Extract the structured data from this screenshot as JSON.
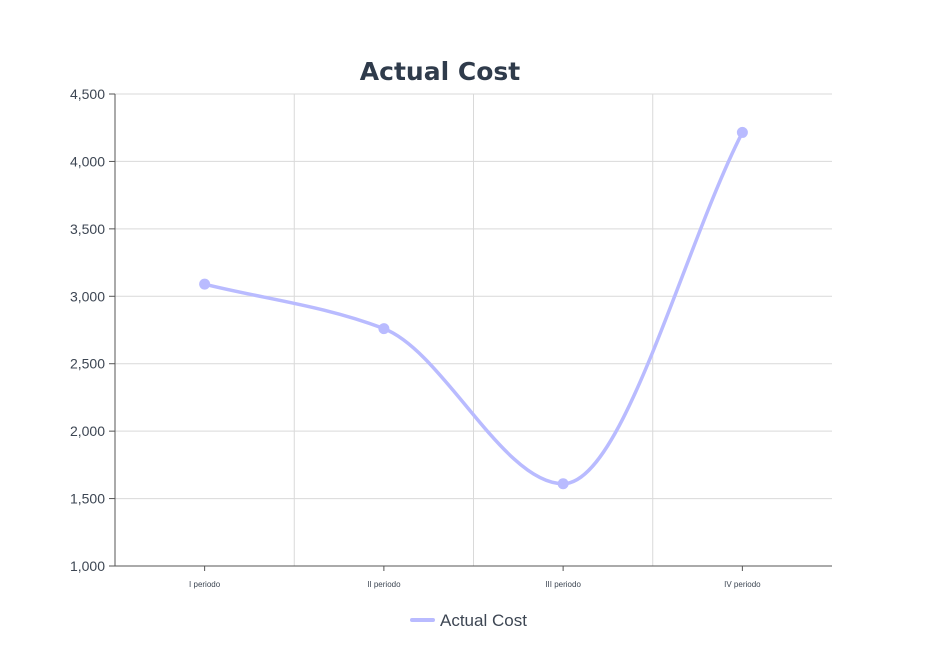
{
  "chart_data": {
    "type": "line",
    "title": "Actual Cost",
    "categories": [
      "I periodo",
      "II periodo",
      "III periodo",
      "IV periodo"
    ],
    "series": [
      {
        "name": "Actual Cost",
        "values": [
          3090,
          2760,
          1610,
          4215
        ],
        "color": "#b9bbff"
      }
    ],
    "ylim": [
      1000,
      4500
    ],
    "yticks": [
      1000,
      1500,
      2000,
      2500,
      3000,
      3500,
      4000,
      4500
    ],
    "ytick_labels": [
      "1,000",
      "1,500",
      "2,000",
      "2,500",
      "3,000",
      "3,500",
      "4,000",
      "4,500"
    ],
    "xlabel": "",
    "ylabel": "",
    "grid": true,
    "smooth": true,
    "legend": "bottom-center",
    "colors": {
      "title": "#2f3b4b",
      "grid": "#d9d9d9",
      "axis": "#555555",
      "text": "#3d4653"
    }
  }
}
